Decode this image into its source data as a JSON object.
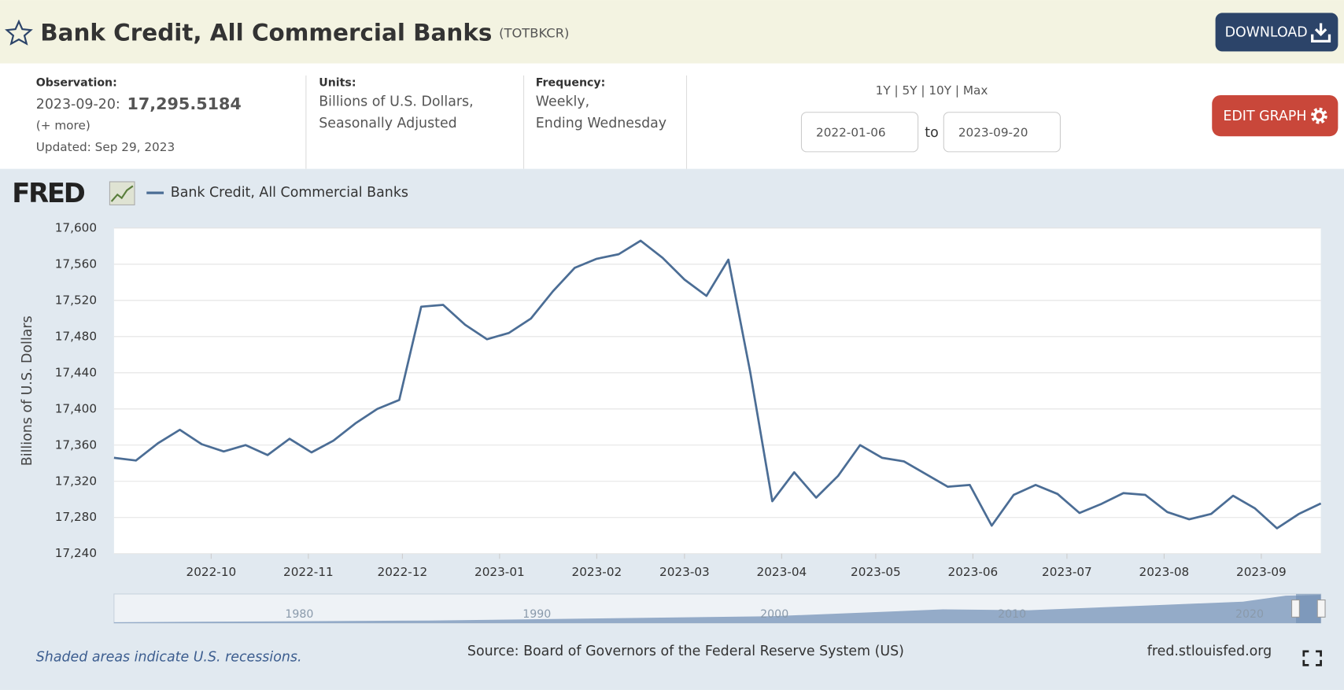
{
  "header": {
    "title": "Bank Credit, All Commercial Banks",
    "series_id": "(TOTBKCR)",
    "download": "DOWNLOAD"
  },
  "info": {
    "observation": {
      "label": "Observation:",
      "date": "2023-09-20",
      "separator": ":",
      "value": "17,295.5184",
      "more": "(+ more)",
      "updated": "Updated: Sep 29, 2023"
    },
    "units": {
      "label": "Units:",
      "lines": [
        "Billions of U.S. Dollars,",
        "Seasonally Adjusted"
      ]
    },
    "frequency": {
      "label": "Frequency:",
      "lines": [
        "Weekly,",
        "Ending Wednesday"
      ]
    },
    "range": {
      "options": "1Y | 5Y | 10Y | Max",
      "start": "2022-01-06",
      "to": "to",
      "end": "2023-09-20"
    },
    "edit": "EDIT GRAPH"
  },
  "chart_data": {
    "type": "line",
    "logo": "FRED",
    "y_label": "Billions of U.S. Dollars",
    "series": [
      {
        "name": "Bank Credit, All Commercial Banks",
        "color": "#4b6d95",
        "values": [
          17346,
          17343,
          17362,
          17377,
          17361,
          17353,
          17360,
          17349,
          17367,
          17352,
          17365,
          17384,
          17400,
          17410,
          17513,
          17515,
          17493,
          17477,
          17484,
          17500,
          17530,
          17556,
          17566,
          17571,
          17586,
          17567,
          17543,
          17525,
          17565,
          17440,
          17298,
          17330,
          17302,
          17326,
          17360,
          17346,
          17342,
          17328,
          17314,
          17316,
          17271,
          17305,
          17316,
          17306,
          17285,
          17295,
          17307,
          17305,
          17286,
          17278,
          17284,
          17304,
          17290,
          17268,
          17284,
          17295.5184
        ]
      }
    ],
    "xticks": [
      "2022-10",
      "2022-11",
      "2022-12",
      "2023-01",
      "2023-02",
      "2023-03",
      "2023-04",
      "2023-05",
      "2023-06",
      "2023-07",
      "2023-08",
      "2023-09"
    ],
    "ylim": [
      17240,
      17600
    ],
    "yticks": [
      {
        "value": 17240,
        "label": "17,240"
      },
      {
        "value": 17280,
        "label": "17,280"
      },
      {
        "value": 17320,
        "label": "17,320"
      },
      {
        "value": 17360,
        "label": "17,360"
      },
      {
        "value": 17400,
        "label": "17,400"
      },
      {
        "value": 17440,
        "label": "17,440"
      },
      {
        "value": 17480,
        "label": "17,480"
      },
      {
        "value": 17520,
        "label": "17,520"
      },
      {
        "value": 17560,
        "label": "17,560"
      },
      {
        "value": 17600,
        "label": "17,600"
      }
    ],
    "grid": true
  },
  "navigator": {
    "xlim": [
      1972.2,
      2023
    ],
    "ticks": [
      1980,
      1990,
      2000,
      2010,
      2020
    ]
  },
  "footer": {
    "note": "Shaded areas indicate U.S. recessions.",
    "source": "Source: Board of Governors of the Federal Reserve System (US)",
    "site": "fred.stlouisfed.org"
  }
}
